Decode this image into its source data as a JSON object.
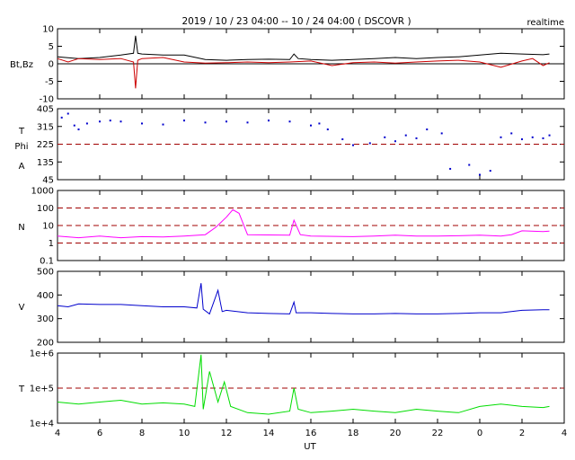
{
  "header": {
    "title": "2019 / 10 / 23   04:00 -- 10 / 24   04:00 ( DSCOVR )",
    "mode": "realtime"
  },
  "xaxis": {
    "label": "UT",
    "ticks": [
      "4",
      "6",
      "8",
      "10",
      "12",
      "14",
      "16",
      "18",
      "20",
      "22",
      "0",
      "2",
      "4"
    ]
  },
  "colors": {
    "bt": "#000000",
    "bz": "#cc0000",
    "phi": "#0000cc",
    "density": "#ff00ff",
    "speed": "#0000cc",
    "temp": "#00dd00",
    "ref_line": "#a00000"
  },
  "chart_data": [
    {
      "type": "line",
      "panel": "mag",
      "ylabel": "Bt,Bz",
      "ylim": [
        -10,
        10
      ],
      "yticks": [
        "10",
        "5",
        "0",
        "-5",
        "-10"
      ],
      "x_unit": "hours since 04:00 UT",
      "series": [
        {
          "name": "Bt",
          "x": [
            0,
            1,
            2,
            3,
            3.6,
            3.7,
            3.8,
            4,
            5,
            6,
            7,
            8,
            9,
            10,
            11,
            11.2,
            11.4,
            12,
            13,
            14,
            15,
            16,
            17,
            18,
            19,
            20,
            21,
            22,
            23,
            23.3
          ],
          "values": [
            2,
            1.5,
            1.8,
            2.5,
            3,
            8,
            3,
            2.8,
            2.5,
            2.5,
            1.2,
            1.0,
            1.2,
            1.3,
            1.2,
            2.8,
            1.5,
            1.2,
            1.0,
            1.2,
            1.5,
            1.8,
            1.5,
            1.8,
            2.0,
            2.5,
            3,
            2.8,
            2.6,
            2.8
          ]
        },
        {
          "name": "Bz",
          "x": [
            0,
            0.5,
            1,
            2,
            3,
            3.6,
            3.7,
            3.8,
            4,
            5,
            6,
            7,
            8,
            9,
            10,
            11,
            12,
            13,
            14,
            15,
            16,
            17,
            18,
            19,
            20,
            21,
            22,
            22.5,
            23,
            23.3
          ],
          "values": [
            1.5,
            0.5,
            1.5,
            1.2,
            1.5,
            0.5,
            -7,
            1.0,
            1.5,
            1.8,
            0.5,
            0.2,
            0.3,
            0.5,
            0.3,
            0.5,
            0.8,
            -0.5,
            0.3,
            0.5,
            0.2,
            0.5,
            0.8,
            1.0,
            0.5,
            -1,
            0.8,
            1.5,
            -0.5,
            0.3
          ]
        }
      ]
    },
    {
      "type": "scatter",
      "panel": "phi",
      "ylabel": "T Phi A",
      "ylim": [
        45,
        405
      ],
      "yticks": [
        "405",
        "315",
        "225",
        "135",
        "45"
      ],
      "reference_lines": [
        225
      ],
      "series": [
        {
          "name": "Phi",
          "x": [
            0.2,
            0.5,
            0.8,
            1.0,
            1.4,
            2,
            2.5,
            3,
            4,
            5,
            6,
            7,
            8,
            9,
            10,
            11,
            12,
            12.4,
            12.8,
            13.5,
            14,
            14.8,
            15.5,
            16,
            16.5,
            17,
            17.5,
            18.2,
            18.6,
            19.5,
            20,
            20.5,
            21,
            21.5,
            22,
            22.5,
            23,
            23.3
          ],
          "values": [
            360,
            380,
            320,
            300,
            330,
            340,
            345,
            340,
            330,
            325,
            345,
            335,
            340,
            335,
            345,
            340,
            320,
            330,
            300,
            250,
            220,
            230,
            260,
            240,
            270,
            255,
            300,
            280,
            100,
            120,
            70,
            90,
            260,
            280,
            250,
            260,
            255,
            270
          ]
        }
      ]
    },
    {
      "type": "line",
      "panel": "density",
      "ylabel": "N",
      "yscale": "log",
      "ylim": [
        0.1,
        1000
      ],
      "yticks": [
        "1000",
        "100",
        "10",
        "1",
        "0.1"
      ],
      "reference_lines": [
        1,
        10,
        100
      ],
      "series": [
        {
          "name": "N",
          "x": [
            0,
            1,
            2,
            3,
            4,
            5,
            6,
            7,
            7.5,
            8,
            8.3,
            8.6,
            9,
            11,
            11.2,
            11.5,
            12,
            14,
            15,
            16,
            17,
            18,
            19,
            20,
            21,
            21.5,
            22,
            23,
            23.3
          ],
          "values": [
            2.5,
            2.0,
            2.5,
            2.0,
            2.3,
            2.2,
            2.5,
            3.0,
            8,
            30,
            80,
            50,
            3,
            2.8,
            20,
            3,
            2.5,
            2.3,
            2.5,
            2.8,
            2.5,
            2.5,
            2.6,
            2.8,
            2.5,
            3.0,
            5,
            4.5,
            4.8
          ]
        }
      ]
    },
    {
      "type": "line",
      "panel": "speed",
      "ylabel": "V",
      "ylim": [
        200,
        500
      ],
      "yticks": [
        "500",
        "400",
        "300",
        "200"
      ],
      "series": [
        {
          "name": "V",
          "x": [
            0,
            0.5,
            1,
            2,
            3,
            4,
            5,
            6,
            6.6,
            6.8,
            6.9,
            7.2,
            7.6,
            7.8,
            8,
            9,
            10,
            11,
            11.2,
            11.3,
            12,
            13,
            14,
            15,
            16,
            17,
            18,
            19,
            20,
            21,
            22,
            23,
            23.3
          ],
          "values": [
            355,
            350,
            362,
            360,
            360,
            355,
            350,
            350,
            345,
            450,
            340,
            320,
            420,
            330,
            335,
            325,
            322,
            320,
            370,
            325,
            325,
            322,
            320,
            320,
            322,
            320,
            320,
            322,
            325,
            325,
            335,
            338,
            338
          ]
        }
      ]
    },
    {
      "type": "line",
      "panel": "temperature",
      "ylabel": "T",
      "yscale": "log",
      "ylim": [
        10000,
        1000000
      ],
      "yticks": [
        "1e+6",
        "1e+5",
        "1e+4"
      ],
      "reference_lines": [
        100000
      ],
      "series": [
        {
          "name": "T",
          "x": [
            0,
            1,
            2,
            3,
            4,
            5,
            6,
            6.5,
            6.8,
            6.9,
            7.2,
            7.6,
            7.9,
            8.2,
            9,
            10,
            11,
            11.2,
            11.4,
            12,
            13,
            14,
            15,
            16,
            17,
            18,
            19,
            20,
            21,
            22,
            23,
            23.3
          ],
          "values": [
            40000,
            35000,
            40000,
            45000,
            35000,
            38000,
            35000,
            30000,
            900000,
            25000,
            300000,
            40000,
            150000,
            30000,
            20000,
            18000,
            22000,
            100000,
            25000,
            20000,
            22000,
            25000,
            22000,
            20000,
            25000,
            22000,
            20000,
            30000,
            35000,
            30000,
            28000,
            30000
          ]
        }
      ]
    }
  ]
}
